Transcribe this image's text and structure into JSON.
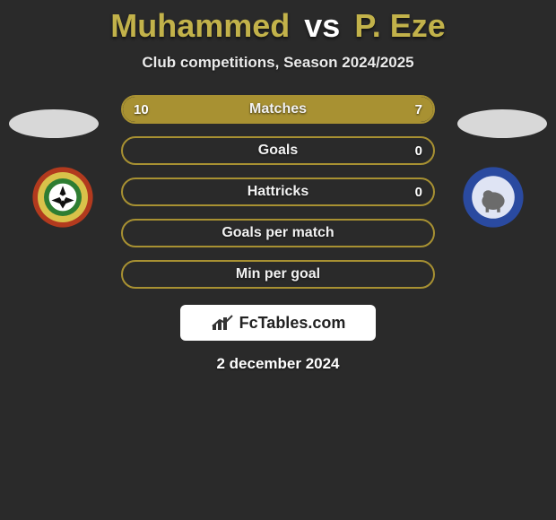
{
  "title": {
    "player1": "Muhammed",
    "vs": "vs",
    "player2": "P. Eze",
    "player1_color": "#c2b24a",
    "player2_color": "#c2b24a"
  },
  "subtitle": "Club competitions, Season 2024/2025",
  "country_badge_color": "#d8d8d8",
  "club_left": {
    "ring_outer": "#b23a1e",
    "ring_inner": "#d9c24a",
    "center": "#ffffff"
  },
  "club_right": {
    "ring_outer": "#2a4aa0",
    "center": "#d0d4e8"
  },
  "stats": {
    "row_border_color": "#a89132",
    "row_fill_color": "#a89132",
    "row_bg_color": "transparent",
    "label_color": "#f2f2f2",
    "rows": [
      {
        "label": "Matches",
        "left": "10",
        "right": "7",
        "left_pct": 59,
        "right_pct": 41
      },
      {
        "label": "Goals",
        "left": "",
        "right": "0",
        "left_pct": 0,
        "right_pct": 0
      },
      {
        "label": "Hattricks",
        "left": "",
        "right": "0",
        "left_pct": 0,
        "right_pct": 0
      },
      {
        "label": "Goals per match",
        "left": "",
        "right": "",
        "left_pct": 0,
        "right_pct": 0
      },
      {
        "label": "Min per goal",
        "left": "",
        "right": "",
        "left_pct": 0,
        "right_pct": 0
      }
    ]
  },
  "footer": {
    "logo_text": "FcTables.com",
    "date": "2 december 2024"
  }
}
